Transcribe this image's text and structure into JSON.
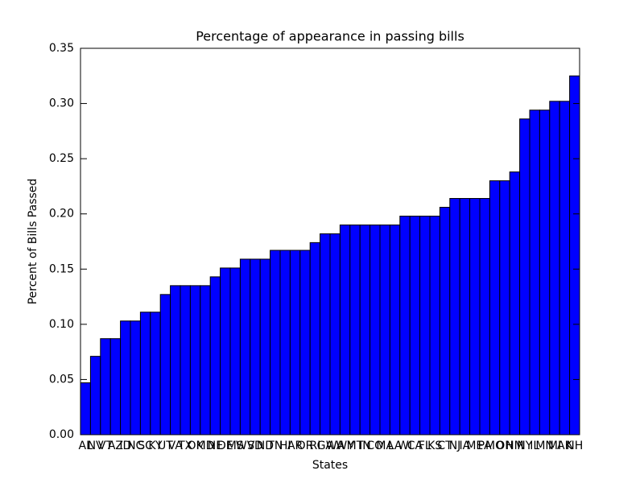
{
  "chart_data": {
    "type": "bar",
    "title": "Percentage of appearance in passing bills",
    "x_label": "States",
    "y_label": "Percent of Bills Passed",
    "categories": [
      "AL",
      "NV",
      "VT",
      "AZ",
      "ID",
      "NC",
      "SC",
      "KY",
      "UT",
      "VA",
      "TX",
      "OK",
      "MD",
      "NE",
      "DE",
      "MS",
      "WV",
      "SD",
      "ND",
      "TN",
      "HI",
      "AR",
      "OR",
      "RI",
      "GA",
      "WA",
      "WY",
      "MT",
      "IN",
      "CO",
      "MA",
      "LA",
      "WI",
      "CA",
      "FL",
      "KS",
      "CT",
      "NJ",
      "IA",
      "ME",
      "PA",
      "MO",
      "OH",
      "NM",
      "NY",
      "IL",
      "MN",
      "MI",
      "AK",
      "NH"
    ],
    "values": [
      0.047,
      0.071,
      0.087,
      0.087,
      0.103,
      0.103,
      0.111,
      0.111,
      0.127,
      0.135,
      0.135,
      0.135,
      0.135,
      0.143,
      0.151,
      0.151,
      0.159,
      0.159,
      0.159,
      0.167,
      0.167,
      0.167,
      0.167,
      0.174,
      0.182,
      0.182,
      0.19,
      0.19,
      0.19,
      0.19,
      0.19,
      0.19,
      0.198,
      0.198,
      0.198,
      0.198,
      0.206,
      0.214,
      0.214,
      0.214,
      0.214,
      0.23,
      0.23,
      0.238,
      0.286,
      0.294,
      0.294,
      0.302,
      0.302,
      0.325
    ],
    "color": "#0000ff",
    "ylim": [
      0,
      0.35
    ],
    "yticks": [
      {
        "value": 0,
        "label": "0.00"
      },
      0.05,
      {
        "value": 0.1,
        "label": "0.10"
      },
      0.15,
      {
        "value": 0.2,
        "label": "0.20"
      },
      0.25,
      {
        "value": 0.3,
        "label": "0.30"
      },
      0.35
    ],
    "grid": false
  }
}
